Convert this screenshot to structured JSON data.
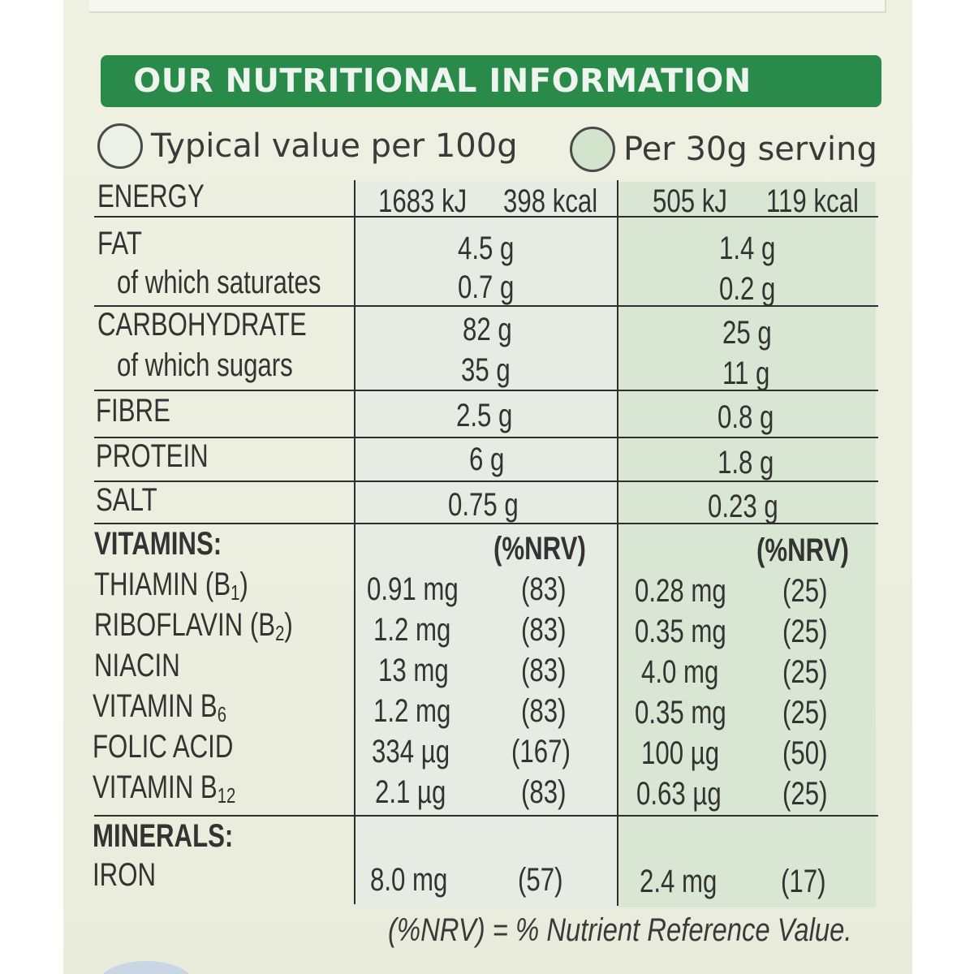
{
  "header": {
    "title": "OUR NUTRITIONAL INFORMATION"
  },
  "legend": {
    "per_100g": "Typical value per 100g",
    "per_serving": "Per 30g serving"
  },
  "energy": {
    "label": "ENERGY",
    "per_100g_kj": "1683 kJ",
    "per_100g_kcal": "398 kcal",
    "per_serving_kj": "505 kJ",
    "per_serving_kcal": "119 kcal"
  },
  "nutrients": [
    {
      "label": "FAT",
      "per_100g": "4.5 g",
      "per_serving": "1.4 g"
    },
    {
      "label": "of which saturates",
      "per_100g": "0.7 g",
      "per_serving": "0.2 g"
    },
    {
      "label": "CARBOHYDRATE",
      "per_100g": "82 g",
      "per_serving": "25 g"
    },
    {
      "label": "of which sugars",
      "per_100g": "35 g",
      "per_serving": "11 g"
    },
    {
      "label": "FIBRE",
      "per_100g": "2.5 g",
      "per_serving": "0.8 g"
    },
    {
      "label": "PROTEIN",
      "per_100g": "6 g",
      "per_serving": "1.8 g"
    },
    {
      "label": "SALT",
      "per_100g": "0.75 g",
      "per_serving": "0.23 g"
    }
  ],
  "vitamins": {
    "heading": "VITAMINS:",
    "nrv_header": "(%NRV)",
    "rows": [
      {
        "label": "THIAMIN (B",
        "sub": "1",
        "suffix": ")",
        "per_100g": "0.91 mg",
        "nrv_100g": "(83)",
        "per_serving": "0.28 mg",
        "nrv_serving": "(25)"
      },
      {
        "label": "RIBOFLAVIN (B",
        "sub": "2",
        "suffix": ")",
        "per_100g": "1.2 mg",
        "nrv_100g": "(83)",
        "per_serving": "0.35 mg",
        "nrv_serving": "(25)"
      },
      {
        "label": "NIACIN",
        "sub": "",
        "suffix": "",
        "per_100g": "13 mg",
        "nrv_100g": "(83)",
        "per_serving": "4.0 mg",
        "nrv_serving": "(25)"
      },
      {
        "label": "VITAMIN B",
        "sub": "6",
        "suffix": "",
        "per_100g": "1.2 mg",
        "nrv_100g": "(83)",
        "per_serving": "0.35 mg",
        "nrv_serving": "(25)"
      },
      {
        "label": "FOLIC ACID",
        "sub": "",
        "suffix": "",
        "per_100g": "334 µg",
        "nrv_100g": "(167)",
        "per_serving": "100 µg",
        "nrv_serving": "(50)"
      },
      {
        "label": "VITAMIN B",
        "sub": "12",
        "suffix": "",
        "per_100g": "2.1 µg",
        "nrv_100g": "(83)",
        "per_serving": "0.63 µg",
        "nrv_serving": "(25)"
      }
    ]
  },
  "minerals": {
    "heading": "MINERALS:",
    "rows": [
      {
        "label": "IRON",
        "per_100g": "8.0 mg",
        "nrv_100g": "(57)",
        "per_serving": "2.4 mg",
        "nrv_serving": "(17)"
      }
    ]
  },
  "footnote": "(%NRV) = % Nutrient Reference Value."
}
